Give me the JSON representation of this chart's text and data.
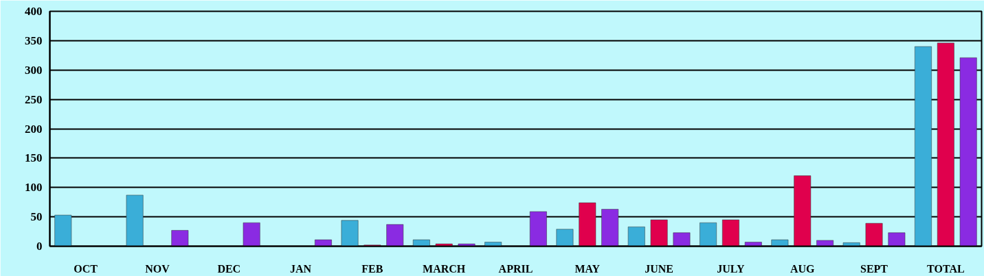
{
  "chart_data": {
    "type": "bar",
    "categories": [
      "OCT",
      "NOV",
      "DEC",
      "JAN",
      "FEB",
      "MARCH",
      "APRIL",
      "MAY",
      "JUNE",
      "JULY",
      "AUG",
      "SEPT",
      "TOTAL"
    ],
    "series": [
      {
        "color": "#3aaed8",
        "values": [
          53,
          87,
          null,
          null,
          44,
          11,
          7,
          29,
          33,
          40,
          11,
          6,
          340
        ]
      },
      {
        "color": "#e0004d",
        "values": [
          null,
          null,
          null,
          null,
          2,
          4,
          null,
          74,
          45,
          45,
          120,
          39,
          346
        ]
      },
      {
        "color": "#8a2be2",
        "values": [
          null,
          27,
          40,
          11,
          37,
          4,
          59,
          63,
          23,
          7,
          10,
          23,
          321
        ]
      }
    ],
    "ylim": [
      0,
      400
    ],
    "yticks": [
      0,
      50,
      100,
      150,
      200,
      250,
      300,
      350,
      400
    ],
    "grid": "y"
  }
}
